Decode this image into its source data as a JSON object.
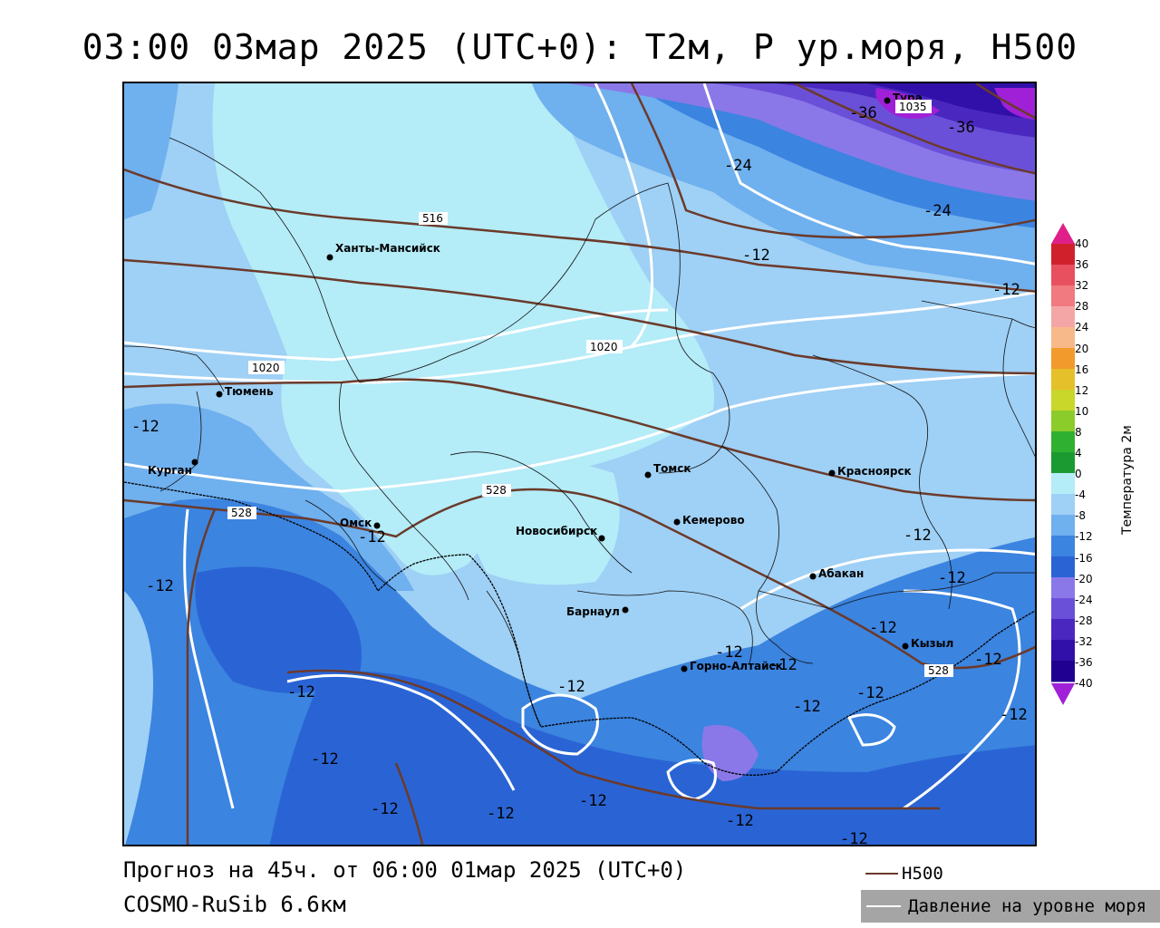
{
  "title": "03:00 03мар 2025 (UTC+0): Т2м, Р ур.моря, Н500",
  "footer": {
    "forecast": "Прогноз на 45ч. от 06:00 01мар 2025 (UTC+0)",
    "model": "COSMO-RuSib 6.6км"
  },
  "legend": {
    "h500_label": "H500",
    "h500_color": "#6b3a2a",
    "slp_label": "Давление на уровне моря",
    "slp_color": "#ffffff"
  },
  "colorbar": {
    "title": "Температура 2м",
    "levels": [
      "40",
      "36",
      "32",
      "28",
      "24",
      "20",
      "16",
      "12",
      "10",
      "8",
      "4",
      "0",
      "-4",
      "-8",
      "-12",
      "-16",
      "-20",
      "-24",
      "-28",
      "-32",
      "-36",
      "-40"
    ],
    "colors": [
      "#b00018",
      "#d0202c",
      "#e85060",
      "#f07a80",
      "#f4a6a6",
      "#f7b88a",
      "#f29a2c",
      "#e6c02a",
      "#c9d62a",
      "#8ccc2a",
      "#30b030",
      "#1a9a30",
      "#b4ecf8",
      "#9fd0f5",
      "#6fb0ee",
      "#3b84e0",
      "#2a64d4",
      "#8a78e8",
      "#6a50d8",
      "#4a28c0",
      "#3010a8",
      "#200090"
    ],
    "top_arrow_color": "#e0208a",
    "bottom_arrow_color": "#a020d8"
  },
  "cities": [
    {
      "name": "Ханты-Мансийск"
    },
    {
      "name": "Тюмень"
    },
    {
      "name": "Курган"
    },
    {
      "name": "Омск"
    },
    {
      "name": "Томск"
    },
    {
      "name": "Красноярск"
    },
    {
      "name": "Новосибирск"
    },
    {
      "name": "Кемерово"
    },
    {
      "name": "Барнаул"
    },
    {
      "name": "Абакан"
    },
    {
      "name": "Горно-Алтайск"
    },
    {
      "name": "Кызыл"
    },
    {
      "name": "Тура"
    }
  ],
  "contour_labels": {
    "h500": [
      "516",
      "528",
      "528",
      "528"
    ],
    "slp": [
      "1020",
      "1020",
      "1035"
    ],
    "temp": [
      "-12",
      "-12",
      "-12",
      "-12",
      "-12",
      "-12",
      "-12",
      "-12",
      "-12",
      "-12",
      "-12",
      "-12",
      "-12",
      "-12",
      "-12",
      "-12",
      "-12",
      "-12",
      "-12",
      "-12",
      "-12",
      "-12",
      "-24",
      "-24",
      "-36",
      "-36"
    ]
  }
}
